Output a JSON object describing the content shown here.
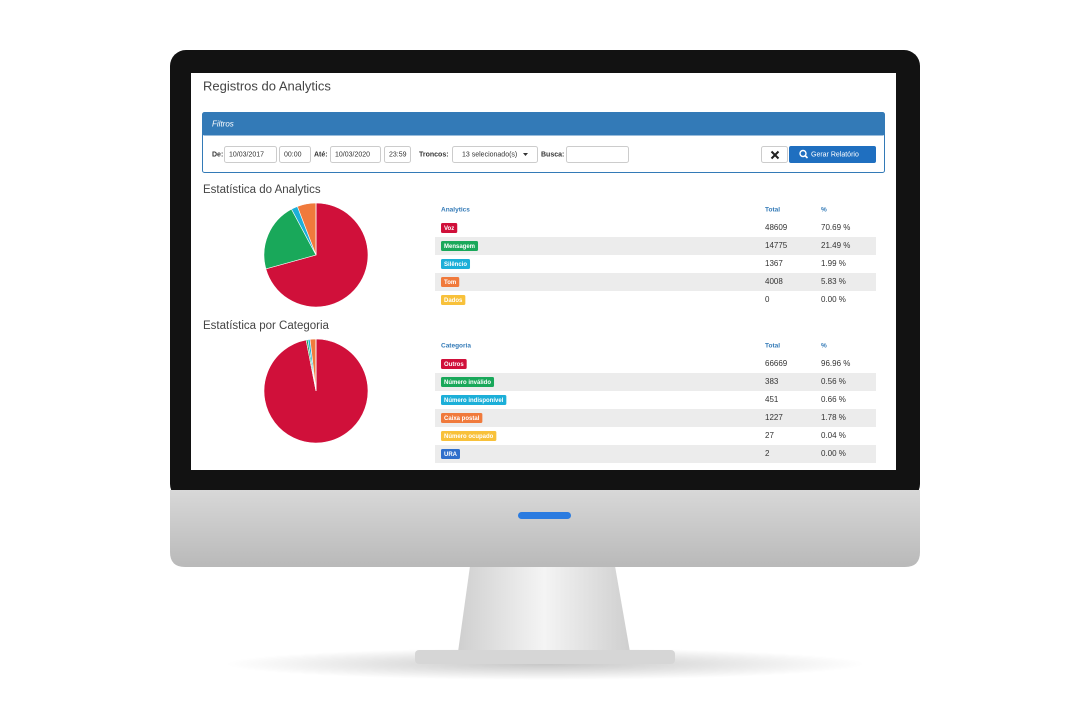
{
  "page": {
    "title": "Registros do Analytics"
  },
  "filters": {
    "title": "Filtros",
    "from_label": "De:",
    "from_date": "10/03/2017",
    "from_time": "00:00",
    "to_label": "Até:",
    "to_date": "10/03/2020",
    "to_time": "23:59",
    "trunks_label": "Troncos:",
    "trunks_value": "13 selecionado(s)",
    "search_label": "Busca:",
    "submit_button": "Gerar Relatório"
  },
  "sections": [
    {
      "title": "Estatística do Analytics",
      "header": [
        "Analytics",
        "Total",
        "%"
      ],
      "rows": [
        {
          "label": "Voz",
          "color": "#d0103a",
          "total": 48609,
          "percent": "70.69 %"
        },
        {
          "label": "Mensagem",
          "color": "#19a85a",
          "total": 14775,
          "percent": "21.49 %"
        },
        {
          "label": "Silêncio",
          "color": "#1cafd8",
          "total": 1367,
          "percent": "1.99 %"
        },
        {
          "label": "Tom",
          "color": "#f07a3c",
          "total": 4008,
          "percent": "5.83 %"
        },
        {
          "label": "Dados",
          "color": "#f8c13a",
          "total": 0,
          "percent": "0.00 %"
        }
      ]
    },
    {
      "title": "Estatística por Categoria",
      "header": [
        "Categoria",
        "Total",
        "%"
      ],
      "rows": [
        {
          "label": "Outros",
          "color": "#d0103a",
          "total": 66669,
          "percent": "96.96 %"
        },
        {
          "label": "Número inválido",
          "color": "#19a85a",
          "total": 383,
          "percent": "0.56 %"
        },
        {
          "label": "Número indisponível",
          "color": "#1cafd8",
          "total": 451,
          "percent": "0.66 %"
        },
        {
          "label": "Caixa postal",
          "color": "#f07a3c",
          "total": 1227,
          "percent": "1.78 %"
        },
        {
          "label": "Número ocupado",
          "color": "#f8c13a",
          "total": 27,
          "percent": "0.04 %"
        },
        {
          "label": "URA",
          "color": "#2f6fcb",
          "total": 2,
          "percent": "0.00 %"
        }
      ]
    }
  ]
}
